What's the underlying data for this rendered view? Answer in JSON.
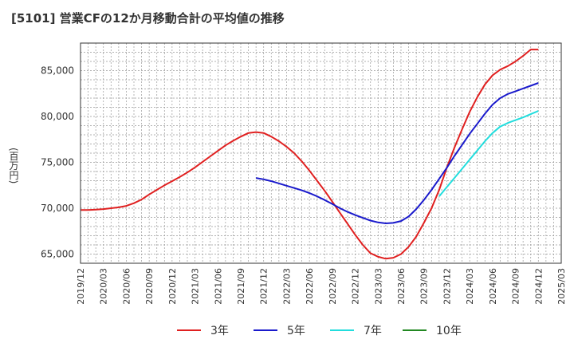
{
  "title": "[5101]  営業CFの12か月移動合計の平均値の推移",
  "chart_data": {
    "type": "line",
    "title": "[5101]  営業CFの12か月移動合計の平均値の推移",
    "ylabel": "(百万円)",
    "xlabel": "",
    "ylim": [
      64000,
      88000
    ],
    "yticks": [
      65000,
      70000,
      75000,
      80000,
      85000
    ],
    "ytick_labels": [
      "65,000",
      "70,000",
      "75,000",
      "80,000",
      "85,000"
    ],
    "xlim": [
      "2019-12",
      "2025-03"
    ],
    "xtick_labels": [
      "2019/12",
      "2020/03",
      "2020/06",
      "2020/09",
      "2020/12",
      "2021/03",
      "2021/06",
      "2021/09",
      "2021/12",
      "2022/03",
      "2022/06",
      "2022/09",
      "2022/12",
      "2023/03",
      "2023/06",
      "2023/09",
      "2023/12",
      "2024/03",
      "2024/06",
      "2024/09",
      "2024/12",
      "2025/03"
    ],
    "grid": true,
    "legend_position": "bottom",
    "series": [
      {
        "name": "3年",
        "color": "#e02020",
        "x": [
          "2019-12",
          "2020-01",
          "2020-02",
          "2020-03",
          "2020-04",
          "2020-05",
          "2020-06",
          "2020-07",
          "2020-08",
          "2020-09",
          "2020-10",
          "2020-11",
          "2020-12",
          "2021-01",
          "2021-02",
          "2021-03",
          "2021-04",
          "2021-05",
          "2021-06",
          "2021-07",
          "2021-08",
          "2021-09",
          "2021-10",
          "2021-11",
          "2021-12",
          "2022-01",
          "2022-02",
          "2022-03",
          "2022-04",
          "2022-05",
          "2022-06",
          "2022-07",
          "2022-08",
          "2022-09",
          "2022-10",
          "2022-11",
          "2022-12",
          "2023-01",
          "2023-02",
          "2023-03",
          "2023-04",
          "2023-05",
          "2023-06",
          "2023-07",
          "2023-08",
          "2023-09",
          "2023-10",
          "2023-11",
          "2023-12",
          "2024-01",
          "2024-02",
          "2024-03",
          "2024-04",
          "2024-05",
          "2024-06",
          "2024-07",
          "2024-08",
          "2024-09",
          "2024-10",
          "2024-11",
          "2024-12"
        ],
        "values": [
          69800,
          69800,
          69850,
          69900,
          70000,
          70100,
          70250,
          70550,
          70950,
          71500,
          72000,
          72500,
          72950,
          73400,
          73900,
          74450,
          75050,
          75650,
          76250,
          76850,
          77350,
          77800,
          78200,
          78300,
          78200,
          77800,
          77300,
          76700,
          76000,
          75100,
          74100,
          73000,
          71900,
          70700,
          69500,
          68300,
          67100,
          66000,
          65100,
          64700,
          64500,
          64600,
          65000,
          65800,
          66900,
          68400,
          70000,
          72000,
          74400,
          76600,
          78600,
          80500,
          82100,
          83500,
          84500,
          85100,
          85500,
          86000,
          86600,
          87300,
          87300
        ]
      },
      {
        "name": "5年",
        "color": "#1a1acc",
        "x": [
          "2021-11",
          "2021-12",
          "2022-01",
          "2022-02",
          "2022-03",
          "2022-04",
          "2022-05",
          "2022-06",
          "2022-07",
          "2022-08",
          "2022-09",
          "2022-10",
          "2022-11",
          "2022-12",
          "2023-01",
          "2023-02",
          "2023-03",
          "2023-04",
          "2023-05",
          "2023-06",
          "2023-07",
          "2023-08",
          "2023-09",
          "2023-10",
          "2023-11",
          "2023-12",
          "2024-01",
          "2024-02",
          "2024-03",
          "2024-04",
          "2024-05",
          "2024-06",
          "2024-07",
          "2024-08",
          "2024-09",
          "2024-10",
          "2024-11",
          "2024-12"
        ],
        "values": [
          73300,
          73150,
          72950,
          72700,
          72450,
          72200,
          71950,
          71650,
          71300,
          70900,
          70450,
          70000,
          69600,
          69250,
          68950,
          68650,
          68450,
          68350,
          68400,
          68600,
          69100,
          69900,
          70900,
          72000,
          73200,
          74400,
          75700,
          76900,
          78100,
          79200,
          80300,
          81300,
          82000,
          82450,
          82750,
          83050,
          83350,
          83650
        ]
      },
      {
        "name": "7年",
        "color": "#22dddd",
        "x": [
          "2023-11",
          "2023-12",
          "2024-01",
          "2024-02",
          "2024-03",
          "2024-04",
          "2024-05",
          "2024-06",
          "2024-07",
          "2024-08",
          "2024-09",
          "2024-10",
          "2024-11",
          "2024-12"
        ],
        "values": [
          71300,
          72300,
          73300,
          74300,
          75300,
          76300,
          77300,
          78200,
          78900,
          79300,
          79600,
          79900,
          80250,
          80600
        ]
      },
      {
        "name": "10年",
        "color": "#228822",
        "x": [],
        "values": []
      }
    ]
  }
}
